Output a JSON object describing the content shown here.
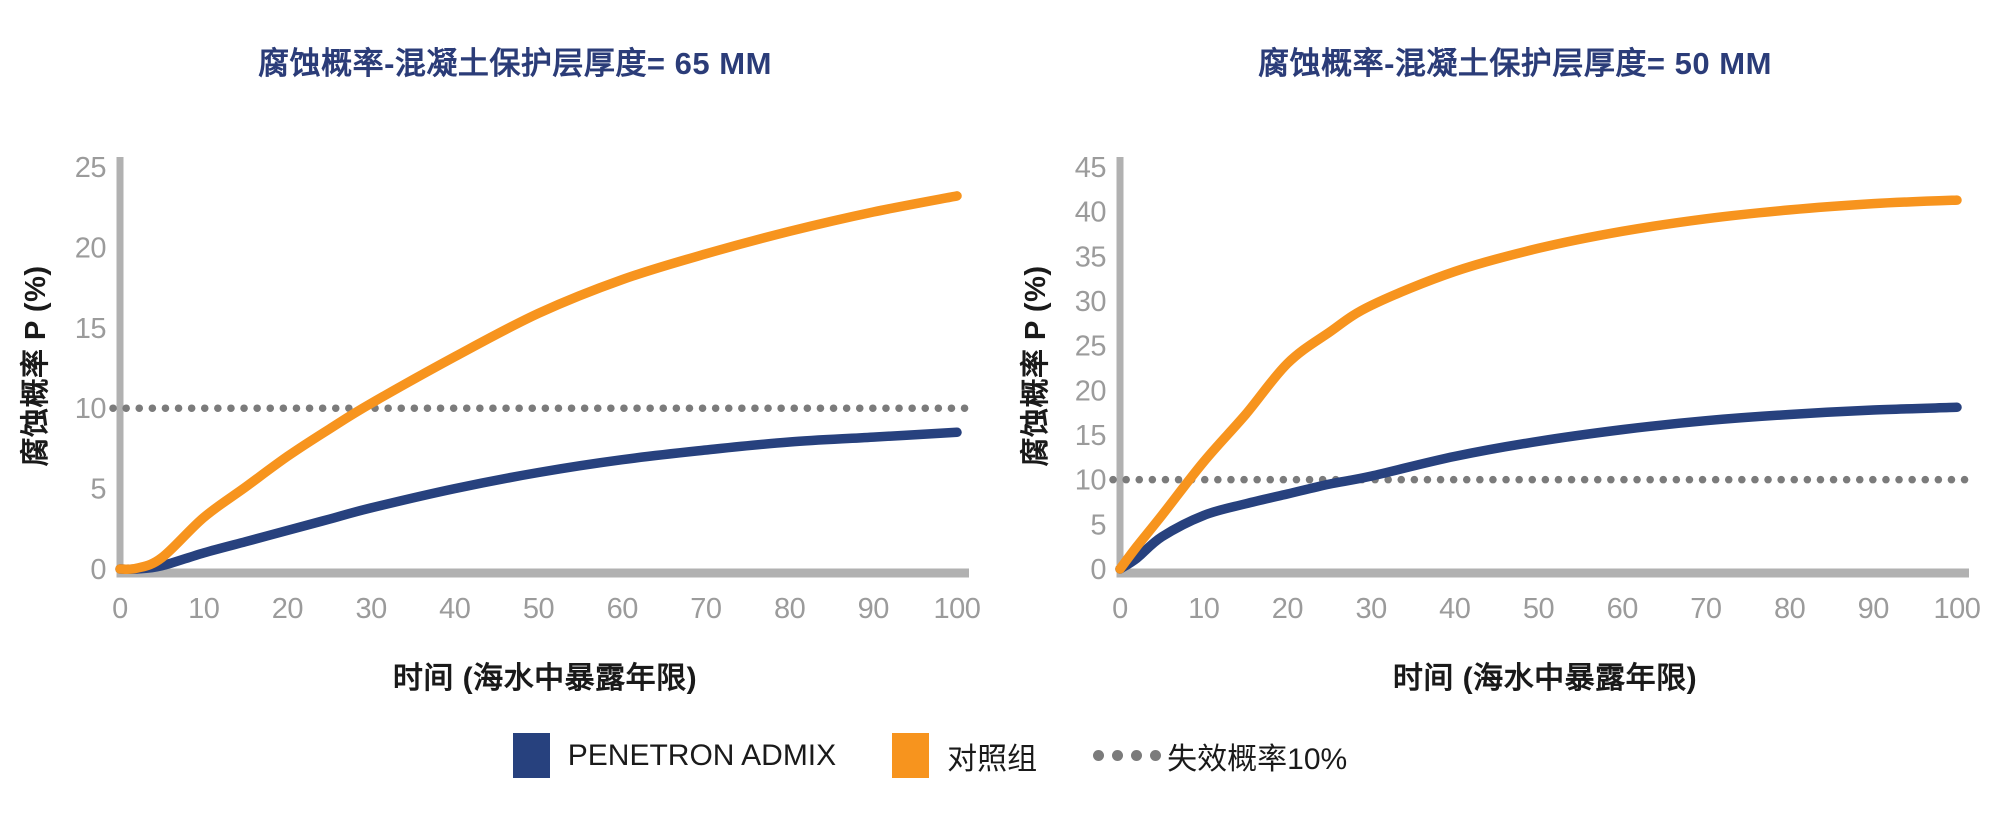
{
  "page": {
    "background": "#ffffff"
  },
  "colors": {
    "title_navy": "#2b3c78",
    "axis_gray": "#b1b1b1",
    "tick_text_gray": "#9b9b9b",
    "label_black": "#1a1a1a",
    "threshold_gray": "#7b7b7b",
    "penetron_blue": "#27417e",
    "control_orange": "#f7941e"
  },
  "legend": {
    "items": [
      {
        "label": "PENETRON ADMIX",
        "swatch": "square",
        "color": "#27417e"
      },
      {
        "label": "对照组",
        "swatch": "square",
        "color": "#f7941e"
      },
      {
        "label": "失效概率10%",
        "swatch": "dots",
        "color": "#7b7b7b"
      }
    ]
  },
  "chart_data": [
    {
      "type": "line",
      "title": "腐蚀概率-混凝土保护层厚度= 65 MM",
      "xlabel": "时间 (海水中暴露年限)",
      "ylabel": "腐蚀概率 P (%)",
      "xlim": [
        0,
        100
      ],
      "ylim": [
        0,
        25
      ],
      "x_ticks": [
        0,
        10,
        20,
        30,
        40,
        50,
        60,
        70,
        80,
        90,
        100
      ],
      "y_ticks": [
        0,
        5,
        10,
        15,
        20,
        25
      ],
      "grid": false,
      "legend_position": "bottom-shared",
      "threshold": {
        "value": 10,
        "style": "dotted",
        "color": "#7b7b7b",
        "label": "失效概率10%"
      },
      "x": [
        0,
        2,
        5,
        10,
        15,
        20,
        25,
        30,
        40,
        50,
        60,
        70,
        80,
        90,
        100
      ],
      "series": [
        {
          "name": "PENETRON ADMIX",
          "color": "#27417e",
          "values": [
            0,
            0,
            0.2,
            1.0,
            1.7,
            2.4,
            3.1,
            3.8,
            5.0,
            6.0,
            6.8,
            7.4,
            7.9,
            8.2,
            8.5
          ]
        },
        {
          "name": "对照组",
          "color": "#f7941e",
          "values": [
            0,
            0.05,
            0.7,
            3.2,
            5.1,
            7.0,
            8.7,
            10.3,
            13.2,
            15.9,
            18.0,
            19.6,
            21.0,
            22.2,
            23.2
          ]
        }
      ]
    },
    {
      "type": "line",
      "title": "腐蚀概率-混凝土保护层厚度= 50 MM",
      "xlabel": "时间 (海水中暴露年限)",
      "ylabel": "腐蚀概率 P (%)",
      "xlim": [
        0,
        100
      ],
      "ylim": [
        0,
        45
      ],
      "x_ticks": [
        0,
        10,
        20,
        30,
        40,
        50,
        60,
        70,
        80,
        90,
        100
      ],
      "y_ticks": [
        0,
        5,
        10,
        15,
        20,
        25,
        30,
        35,
        40,
        45
      ],
      "grid": false,
      "legend_position": "bottom-shared",
      "threshold": {
        "value": 10,
        "style": "dotted",
        "color": "#7b7b7b",
        "label": "失效概率10%"
      },
      "x": [
        0,
        2,
        5,
        10,
        15,
        20,
        25,
        30,
        40,
        50,
        60,
        70,
        80,
        90,
        100
      ],
      "series": [
        {
          "name": "PENETRON ADMIX",
          "color": "#27417e",
          "values": [
            0,
            1.2,
            3.6,
            6.0,
            7.3,
            8.4,
            9.5,
            10.4,
            12.6,
            14.3,
            15.6,
            16.6,
            17.3,
            17.8,
            18.1
          ]
        },
        {
          "name": "对照组",
          "color": "#f7941e",
          "values": [
            0,
            2.5,
            6.0,
            12.0,
            17.3,
            23.0,
            26.5,
            29.5,
            33.3,
            35.9,
            37.8,
            39.2,
            40.2,
            40.9,
            41.3
          ]
        }
      ]
    }
  ]
}
